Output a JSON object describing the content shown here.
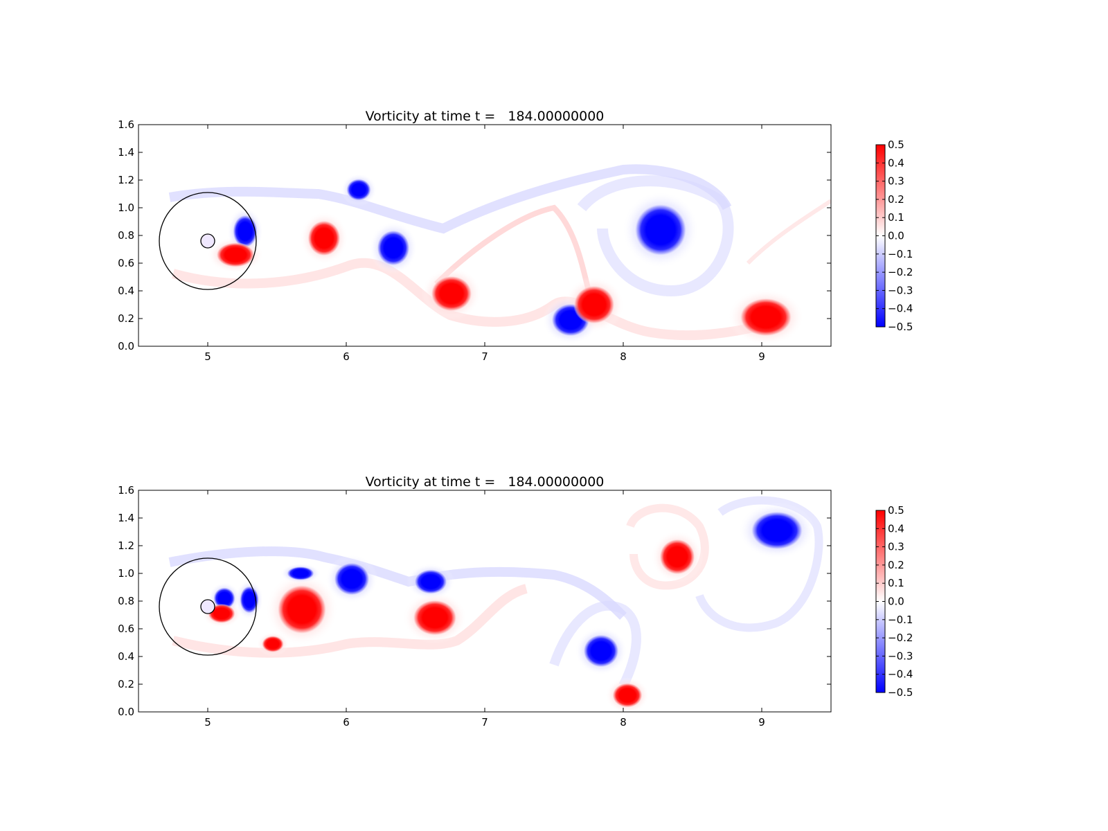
{
  "chart_data": [
    {
      "type": "heatmap",
      "title": "Vorticity at time t =   184.00000000",
      "xlabel": "",
      "ylabel": "",
      "xlim": [
        4.5,
        9.5
      ],
      "ylim": [
        0.0,
        1.6
      ],
      "x_ticks": [
        5,
        6,
        7,
        8,
        9
      ],
      "x_tick_labels": [
        "5",
        "6",
        "7",
        "8",
        "9"
      ],
      "y_ticks": [
        0.0,
        0.2,
        0.4,
        0.6,
        0.8,
        1.0,
        1.2,
        1.4,
        1.6
      ],
      "y_tick_labels": [
        "0.0",
        "0.2",
        "0.4",
        "0.6",
        "0.8",
        "1.0",
        "1.2",
        "1.4",
        "1.6"
      ],
      "colorbar": {
        "range": [
          -0.5,
          0.5
        ],
        "ticks": [
          0.5,
          0.4,
          0.3,
          0.2,
          0.1,
          0.0,
          -0.1,
          -0.2,
          -0.3,
          -0.4,
          -0.5
        ],
        "tick_labels": [
          "0.5",
          "0.4",
          "0.3",
          "0.2",
          "0.1",
          "0.0",
          "−0.1",
          "−0.2",
          "−0.3",
          "−0.4",
          "−0.5"
        ],
        "colormap": "bwr",
        "colors": {
          "low": "#0000ff",
          "mid": "#ffffff",
          "high": "#ff0000"
        }
      },
      "cylinder": {
        "center": [
          5.0,
          0.76
        ],
        "radius": 0.05
      },
      "reference_circle": {
        "center": [
          5.0,
          0.76
        ],
        "radius": 0.35
      },
      "vortices": [
        {
          "x": 5.27,
          "y": 0.83,
          "rx": 0.09,
          "ry": 0.12,
          "value": -0.5
        },
        {
          "x": 5.2,
          "y": 0.66,
          "rx": 0.14,
          "ry": 0.09,
          "value": 0.5
        },
        {
          "x": 5.84,
          "y": 0.78,
          "rx": 0.12,
          "ry": 0.13,
          "value": 0.5
        },
        {
          "x": 6.09,
          "y": 1.13,
          "rx": 0.09,
          "ry": 0.08,
          "value": -0.5
        },
        {
          "x": 6.34,
          "y": 0.71,
          "rx": 0.12,
          "ry": 0.13,
          "value": -0.5
        },
        {
          "x": 6.76,
          "y": 0.38,
          "rx": 0.15,
          "ry": 0.13,
          "value": 0.5
        },
        {
          "x": 7.62,
          "y": 0.19,
          "rx": 0.14,
          "ry": 0.12,
          "value": -0.5
        },
        {
          "x": 7.79,
          "y": 0.3,
          "rx": 0.15,
          "ry": 0.14,
          "value": 0.5
        },
        {
          "x": 8.27,
          "y": 0.84,
          "rx": 0.19,
          "ry": 0.19,
          "value": -0.5
        },
        {
          "x": 9.03,
          "y": 0.21,
          "rx": 0.19,
          "ry": 0.14,
          "value": 0.5
        }
      ]
    },
    {
      "type": "heatmap",
      "title": "Vorticity at time t =   184.00000000",
      "xlabel": "",
      "ylabel": "",
      "xlim": [
        4.5,
        9.5
      ],
      "ylim": [
        0.0,
        1.6
      ],
      "x_ticks": [
        5,
        6,
        7,
        8,
        9
      ],
      "x_tick_labels": [
        "5",
        "6",
        "7",
        "8",
        "9"
      ],
      "y_ticks": [
        0.0,
        0.2,
        0.4,
        0.6,
        0.8,
        1.0,
        1.2,
        1.4,
        1.6
      ],
      "y_tick_labels": [
        "0.0",
        "0.2",
        "0.4",
        "0.6",
        "0.8",
        "1.0",
        "1.2",
        "1.4",
        "1.6"
      ],
      "colorbar": {
        "range": [
          -0.5,
          0.5
        ],
        "ticks": [
          0.5,
          0.4,
          0.3,
          0.2,
          0.1,
          0.0,
          -0.1,
          -0.2,
          -0.3,
          -0.4,
          -0.5
        ],
        "tick_labels": [
          "0.5",
          "0.4",
          "0.3",
          "0.2",
          "0.1",
          "0.0",
          "−0.1",
          "−0.2",
          "−0.3",
          "−0.4",
          "−0.5"
        ],
        "colormap": "bwr",
        "colors": {
          "low": "#0000ff",
          "mid": "#ffffff",
          "high": "#ff0000"
        }
      },
      "cylinder": {
        "center": [
          5.0,
          0.76
        ],
        "radius": 0.05
      },
      "reference_circle": {
        "center": [
          5.0,
          0.76
        ],
        "radius": 0.35
      },
      "vortices": [
        {
          "x": 5.12,
          "y": 0.82,
          "rx": 0.08,
          "ry": 0.08,
          "value": -0.5
        },
        {
          "x": 5.1,
          "y": 0.71,
          "rx": 0.1,
          "ry": 0.07,
          "value": 0.5
        },
        {
          "x": 5.3,
          "y": 0.81,
          "rx": 0.07,
          "ry": 0.1,
          "value": -0.5
        },
        {
          "x": 5.47,
          "y": 0.49,
          "rx": 0.08,
          "ry": 0.06,
          "value": 0.5
        },
        {
          "x": 5.68,
          "y": 0.74,
          "rx": 0.18,
          "ry": 0.18,
          "value": 0.5
        },
        {
          "x": 5.67,
          "y": 1.0,
          "rx": 0.1,
          "ry": 0.05,
          "value": -0.5
        },
        {
          "x": 6.04,
          "y": 0.96,
          "rx": 0.13,
          "ry": 0.12,
          "value": -0.5
        },
        {
          "x": 6.61,
          "y": 0.94,
          "rx": 0.12,
          "ry": 0.09,
          "value": -0.5
        },
        {
          "x": 6.64,
          "y": 0.68,
          "rx": 0.16,
          "ry": 0.13,
          "value": 0.5
        },
        {
          "x": 7.84,
          "y": 0.44,
          "rx": 0.13,
          "ry": 0.12,
          "value": -0.5
        },
        {
          "x": 8.03,
          "y": 0.12,
          "rx": 0.11,
          "ry": 0.09,
          "value": 0.5
        },
        {
          "x": 8.39,
          "y": 1.12,
          "rx": 0.13,
          "ry": 0.13,
          "value": 0.5
        },
        {
          "x": 9.11,
          "y": 1.31,
          "rx": 0.19,
          "ry": 0.14,
          "value": -0.5
        }
      ]
    }
  ]
}
